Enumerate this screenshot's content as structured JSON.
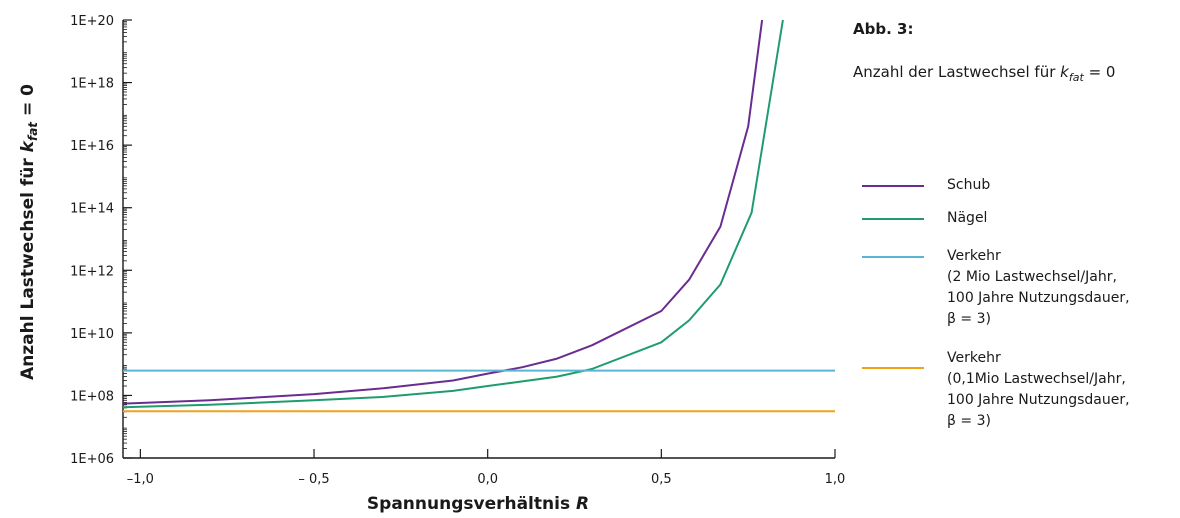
{
  "figure": {
    "label": "Abb. 3:",
    "caption_prefix": "Anzahl der Lastwechsel für ",
    "caption_var": "k",
    "caption_sub": "fat",
    "caption_suffix": " = 0"
  },
  "chart_data": {
    "type": "line",
    "xlabel_text": "Spannungsverhältnis ",
    "xlabel_var": "R",
    "ylabel_text": "Anzahl Lastwechsel für ",
    "ylabel_var": "k",
    "ylabel_sub": "fat",
    "ylabel_suffix": " = 0",
    "xlim": [
      -1.05,
      1.0
    ],
    "ylim": [
      1000000.0,
      1e+20
    ],
    "y_scale": "log",
    "grid": false,
    "x_ticks": [
      {
        "value": -1.0,
        "label": "–1,0"
      },
      {
        "value": -0.5,
        "label": "– 0,5"
      },
      {
        "value": 0.0,
        "label": "0,0"
      },
      {
        "value": 0.5,
        "label": "0,5"
      },
      {
        "value": 1.0,
        "label": "1,0"
      }
    ],
    "y_ticks": [
      {
        "value": 1000000.0,
        "label": "1E+06"
      },
      {
        "value": 100000000.0,
        "label": "1E+08"
      },
      {
        "value": 10000000000.0,
        "label": "1E+10"
      },
      {
        "value": 1000000000000.0,
        "label": "1E+12"
      },
      {
        "value": 100000000000000.0,
        "label": "1E+14"
      },
      {
        "value": 1e+16,
        "label": "1E+16"
      },
      {
        "value": 1e+18,
        "label": "1E+18"
      },
      {
        "value": 1e+20,
        "label": "1E+20"
      }
    ],
    "series": [
      {
        "name": "Schub",
        "color": "#6a2d8f",
        "points": [
          [
            -1.05,
            55000000.0
          ],
          [
            -0.8,
            70000000.0
          ],
          [
            -0.5,
            110000000.0
          ],
          [
            -0.3,
            170000000.0
          ],
          [
            -0.1,
            300000000.0
          ],
          [
            0.0,
            500000000.0
          ],
          [
            0.1,
            800000000.0
          ],
          [
            0.2,
            1500000000.0
          ],
          [
            0.3,
            4000000000.0
          ],
          [
            0.5,
            50000000000.0
          ],
          [
            0.58,
            500000000000.0
          ],
          [
            0.67,
            25000000000000.0
          ],
          [
            0.75,
            4e+16
          ],
          [
            0.79,
            1e+20
          ]
        ]
      },
      {
        "name": "Nägel",
        "color": "#1f9c6e",
        "points": [
          [
            -1.05,
            42000000.0
          ],
          [
            -0.8,
            50000000.0
          ],
          [
            -0.5,
            70000000.0
          ],
          [
            -0.3,
            90000000.0
          ],
          [
            -0.1,
            140000000.0
          ],
          [
            0.0,
            200000000.0
          ],
          [
            0.1,
            280000000.0
          ],
          [
            0.2,
            400000000.0
          ],
          [
            0.3,
            700000000.0
          ],
          [
            0.5,
            5000000000.0
          ],
          [
            0.58,
            25000000000.0
          ],
          [
            0.67,
            350000000000.0
          ],
          [
            0.76,
            70000000000000.0
          ],
          [
            0.85,
            1e+20
          ]
        ]
      },
      {
        "name": "Verkehr",
        "note": [
          "(2 Mio Lastwechsel/Jahr,",
          "100 Jahre Nutzungsdauer,",
          "β = 3)"
        ],
        "color": "#5ab4d6",
        "points": [
          [
            -1.05,
            620000000.0
          ],
          [
            1.0,
            620000000.0
          ]
        ]
      },
      {
        "name": "Verkehr",
        "note": [
          "(0,1Mio Lastwechsel/Jahr,",
          "100 Jahre Nutzungsdauer,",
          "β = 3)"
        ],
        "color": "#f0a21a",
        "points": [
          [
            -1.05,
            31000000.0
          ],
          [
            1.0,
            31000000.0
          ]
        ]
      }
    ]
  }
}
